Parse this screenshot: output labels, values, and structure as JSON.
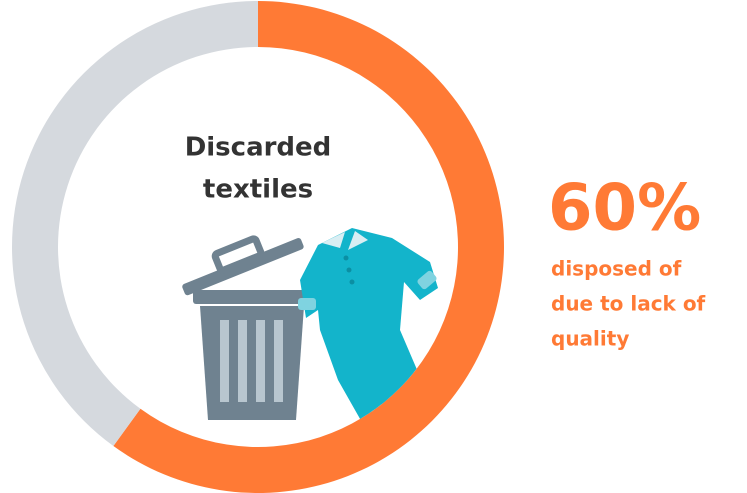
{
  "chart_data": {
    "type": "donut",
    "title_lines": [
      "Discarded",
      "textiles"
    ],
    "values": [
      60,
      40
    ],
    "value_labels": [
      "60%",
      null
    ],
    "colors": [
      "#ff7a35",
      "#d5d9de"
    ],
    "annotation_lines": [
      "disposed of",
      "due to lack of",
      "quality"
    ]
  }
}
